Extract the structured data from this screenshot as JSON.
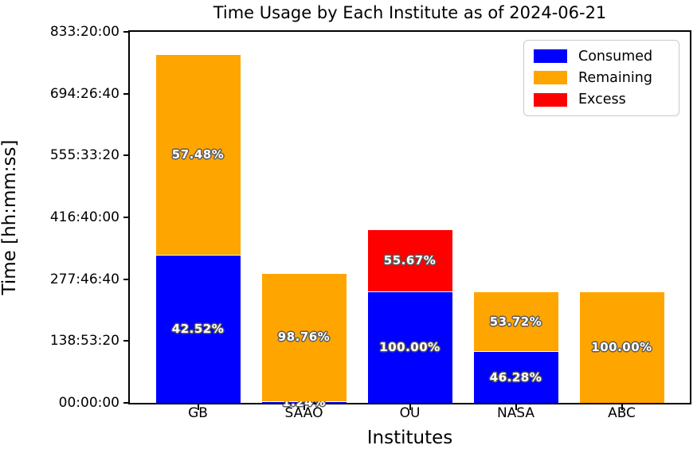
{
  "chart_data": {
    "type": "bar",
    "stacked": true,
    "title": "Time Usage by Each Institute as of 2024-06-21",
    "xlabel": "Institutes",
    "ylabel": "Time [hh:mm:ss]",
    "categories": [
      "GB",
      "SAAO",
      "OU",
      "NASA",
      "ABC"
    ],
    "grid": false,
    "ylim_hours": [
      0,
      833.3333
    ],
    "yticks": [
      {
        "label": "00:00:00",
        "hours": 0
      },
      {
        "label": "138:53:20",
        "hours": 138.8889
      },
      {
        "label": "277:46:40",
        "hours": 277.7778
      },
      {
        "label": "416:40:00",
        "hours": 416.6667
      },
      {
        "label": "555:33:20",
        "hours": 555.5556
      },
      {
        "label": "694:26:40",
        "hours": 694.4444
      },
      {
        "label": "833:20:00",
        "hours": 833.3333
      }
    ],
    "legend": {
      "position": "upper right",
      "entries": [
        {
          "name": "Consumed",
          "color": "#0000ff"
        },
        {
          "name": "Remaining",
          "color": "#ffa500"
        },
        {
          "name": "Excess",
          "color": "#ff0000"
        }
      ]
    },
    "series": [
      {
        "name": "Consumed",
        "color": "#0000ff",
        "values_hours": [
          333.2,
          3.6,
          250.0,
          115.7,
          0
        ],
        "pct_labels": [
          "42.52%",
          "1.24%",
          "100.00%",
          "46.28%",
          ""
        ]
      },
      {
        "name": "Remaining",
        "color": "#ffa500",
        "values_hours": [
          450.4,
          288.2,
          0,
          134.3,
          250.0
        ],
        "pct_labels": [
          "57.48%",
          "98.76%",
          "",
          "53.72%",
          "100.00%"
        ]
      },
      {
        "name": "Excess",
        "color": "#ff0000",
        "values_hours": [
          0,
          0,
          139.2,
          0,
          0
        ],
        "pct_labels": [
          "",
          "",
          "55.67%",
          "",
          ""
        ]
      }
    ]
  }
}
